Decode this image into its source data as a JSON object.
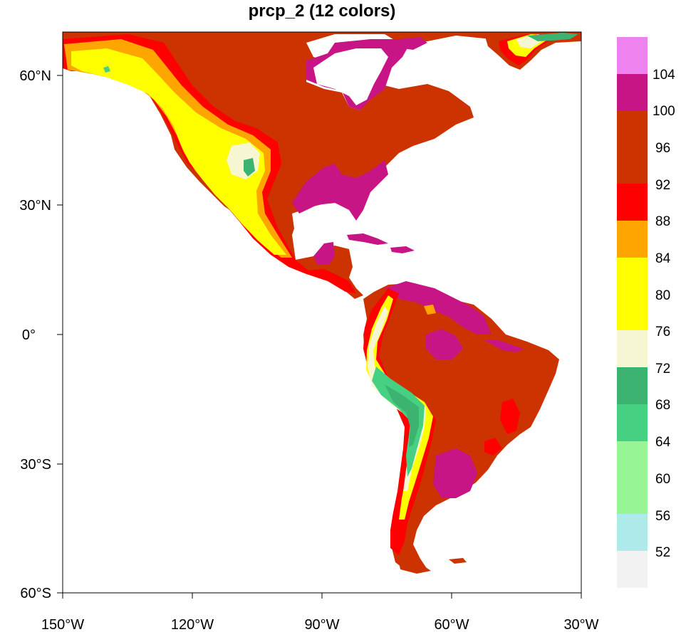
{
  "title": "prcp_2 (12 colors)",
  "map": {
    "lon_range": [
      -150,
      -30
    ],
    "lat_range": [
      -60,
      70
    ],
    "x_ticks": [
      "150°W",
      "120°W",
      "90°W",
      "60°W",
      "30°W"
    ],
    "y_ticks": [
      "60°N",
      "30°N",
      "0°",
      "30°S",
      "60°S"
    ],
    "region": "Americas"
  },
  "colorbar": {
    "labels": [
      "52",
      "56",
      "60",
      "64",
      "68",
      "72",
      "76",
      "80",
      "84",
      "88",
      "92",
      "96",
      "100",
      "104"
    ],
    "colors": [
      "#f2f2f2",
      "#aeeaea",
      "#98f596",
      "#46d182",
      "#3cb371",
      "#f6f6d2",
      "#ffff00",
      "#ffff00",
      "#ffa500",
      "#ff0000",
      "#cc3300",
      "#cc3300",
      "#c71585",
      "#ee82ee"
    ],
    "palette": {
      "ocean": "#ffffff",
      "base": "#cc3300",
      "red": "#ff0000",
      "orange": "#ffa500",
      "yellow": "#ffff00",
      "cream": "#f6f6d2",
      "green_dark": "#3cb371",
      "green": "#46d182",
      "magenta": "#c71585"
    }
  }
}
